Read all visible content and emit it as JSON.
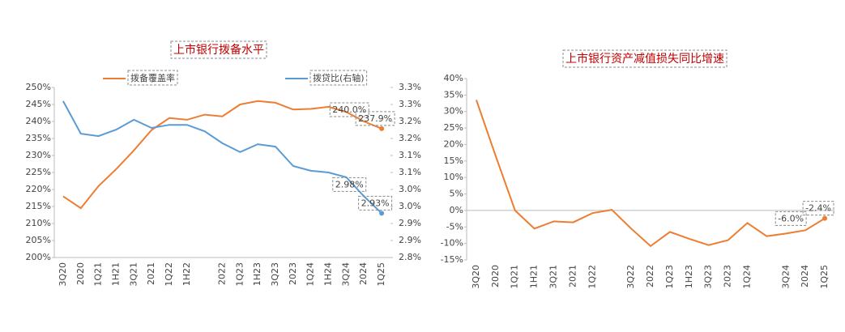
{
  "chart_data": [
    {
      "type": "line",
      "title": "上市银行拨备水平",
      "categories": [
        "3Q20",
        "2020",
        "1Q21",
        "1H21",
        "3Q21",
        "2021",
        "1Q22",
        "1H22",
        null,
        "2022",
        "1Q23",
        "1H23",
        "3Q23",
        "2023",
        "1Q24",
        "1H24",
        "3Q24",
        "2024",
        "1Q25"
      ],
      "series": [
        {
          "name": "拨备覆盖率",
          "color": "#ed7d31",
          "axis": "y",
          "values": [
            218,
            214.5,
            221,
            226,
            231.5,
            237.5,
            241,
            240.5,
            242,
            241.5,
            245,
            246,
            245.5,
            243.5,
            243.7,
            244.3,
            242.8,
            240.0,
            237.9
          ],
          "value_labels": [
            null,
            null,
            null,
            null,
            null,
            null,
            null,
            null,
            null,
            null,
            null,
            null,
            null,
            null,
            null,
            null,
            null,
            "240.0%",
            "237.9%"
          ]
        },
        {
          "name": "拨贷比(右轴)",
          "color": "#5b9bd5",
          "axis": "y2",
          "values": [
            3.26,
            3.164,
            3.157,
            3.176,
            3.205,
            3.181,
            3.19,
            3.19,
            3.171,
            3.136,
            3.11,
            3.133,
            3.126,
            3.069,
            3.055,
            3.05,
            3.036,
            2.98,
            2.93
          ],
          "value_labels": [
            null,
            null,
            null,
            null,
            null,
            null,
            null,
            null,
            null,
            null,
            null,
            null,
            null,
            null,
            null,
            null,
            null,
            "2.98%",
            "2.93%"
          ]
        }
      ],
      "ylim": [
        200,
        250
      ],
      "yticks": [
        {
          "value": 200,
          "label": "200%"
        },
        {
          "value": 205,
          "label": "205%"
        },
        {
          "value": 210,
          "label": "210%"
        },
        {
          "value": 215,
          "label": "215%"
        },
        {
          "value": 220,
          "label": "220%"
        },
        {
          "value": 225,
          "label": "225%"
        },
        {
          "value": 230,
          "label": "230%"
        },
        {
          "value": 235,
          "label": "235%"
        },
        {
          "value": 240,
          "label": "240%"
        },
        {
          "value": 245,
          "label": "245%"
        },
        {
          "value": 250,
          "label": "250%"
        }
      ],
      "y2lim": [
        2.8,
        3.3
      ],
      "y2ticks": [
        {
          "value": 2.8,
          "label": "2.8%"
        },
        {
          "value": 2.85,
          "label": "2.9%"
        },
        {
          "value": 2.9,
          "label": "2.9%"
        },
        {
          "value": 2.95,
          "label": "3.0%"
        },
        {
          "value": 3.0,
          "label": "3.0%"
        },
        {
          "value": 3.05,
          "label": "3.1%"
        },
        {
          "value": 3.1,
          "label": "3.1%"
        },
        {
          "value": 3.15,
          "label": "3.2%"
        },
        {
          "value": 3.2,
          "label": "3.2%"
        },
        {
          "value": 3.25,
          "label": "3.3%"
        },
        {
          "value": 3.3,
          "label": "3.3%"
        }
      ]
    },
    {
      "type": "line",
      "title": "上市银行资产减值损失同比增速",
      "categories": [
        "3Q20",
        "2020",
        "1Q21",
        "1H21",
        "3Q21",
        "2021",
        "1Q22",
        null,
        "3Q22",
        "2022",
        "1Q23",
        "1H23",
        "3Q23",
        "2023",
        "1Q24",
        null,
        "3Q24",
        "2024",
        "1Q25"
      ],
      "series": [
        {
          "color": "#ed7d31",
          "values": [
            33.5,
            16.5,
            0,
            -5.5,
            -3.3,
            -3.6,
            -0.8,
            0.2,
            -5.5,
            -10.8,
            -6.5,
            -8.6,
            -10.5,
            -9,
            -3.8,
            -7.8,
            -7,
            -6.0,
            -2.4
          ],
          "value_labels": [
            null,
            null,
            null,
            null,
            null,
            null,
            null,
            null,
            null,
            null,
            null,
            null,
            null,
            null,
            null,
            null,
            null,
            "-6.0%",
            "-2.4%"
          ]
        }
      ],
      "ylim": [
        -15,
        40
      ],
      "yticks": [
        {
          "value": -15,
          "label": "-15%"
        },
        {
          "value": -10,
          "label": "-10%"
        },
        {
          "value": -5,
          "label": "-5%"
        },
        {
          "value": 0,
          "label": "0%"
        },
        {
          "value": 5,
          "label": "5%"
        },
        {
          "value": 10,
          "label": "10%"
        },
        {
          "value": 15,
          "label": "15%"
        },
        {
          "value": 20,
          "label": "20%"
        },
        {
          "value": 25,
          "label": "25%"
        },
        {
          "value": 30,
          "label": "30%"
        },
        {
          "value": 35,
          "label": "35%"
        },
        {
          "value": 40,
          "label": "40%"
        }
      ]
    }
  ]
}
